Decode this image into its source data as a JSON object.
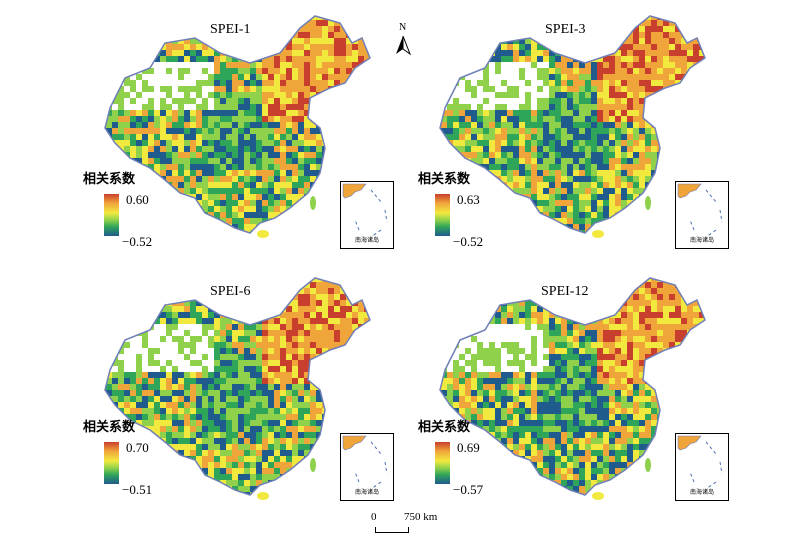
{
  "north_arrow": {
    "label": "N"
  },
  "scale_bar": {
    "zero_label": "0",
    "max_label": "750 km"
  },
  "inset": {
    "label": "南海诸岛"
  },
  "colors": {
    "high": "#c8402d",
    "mid_high": "#f0a53a",
    "mid": "#f2e93f",
    "mid_low": "#8fd14a",
    "low_green": "#2fa55a",
    "low": "#1f5b8c"
  },
  "panels": [
    {
      "title": "SPEI-1",
      "legend_title": "相关系数",
      "legend_max": "0.60",
      "legend_min": "−0.52"
    },
    {
      "title": "SPEI-3",
      "legend_title": "相关系数",
      "legend_max": "0.63",
      "legend_min": "−0.52"
    },
    {
      "title": "SPEI-6",
      "legend_title": "相关系数",
      "legend_max": "0.70",
      "legend_min": "−0.51"
    },
    {
      "title": "SPEI-12",
      "legend_title": "相关系数",
      "legend_max": "0.69",
      "legend_min": "−0.57"
    }
  ]
}
